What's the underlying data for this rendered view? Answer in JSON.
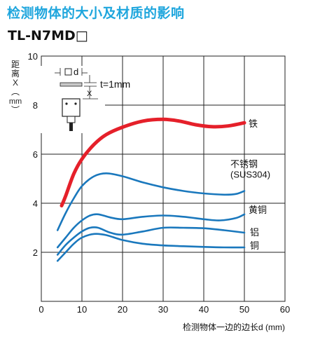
{
  "title": "检测物体的大小及材质的影响",
  "subtitle": "TL-N7MD□",
  "chart_data": {
    "type": "line",
    "ylabel_chars": [
      "距",
      "离",
      "X",
      "︵",
      "mm",
      "︶"
    ],
    "xlabel": "检测物体一边的边长d (mm)",
    "xlim": [
      0,
      60
    ],
    "ylim": [
      0,
      10
    ],
    "x_ticks": [
      "0",
      "10",
      "20",
      "30",
      "40",
      "50",
      "60"
    ],
    "y_ticks": [
      "2",
      "4",
      "6",
      "8",
      "10"
    ],
    "grid": true,
    "inset": {
      "label_d": "d",
      "label_x": "X",
      "label_t": "t=1mm"
    },
    "series": [
      {
        "name": "铁",
        "color": "#e5202a",
        "points": [
          [
            5,
            3.9
          ],
          [
            6,
            4.3
          ],
          [
            8,
            5.2
          ],
          [
            10,
            5.8
          ],
          [
            13,
            6.4
          ],
          [
            16,
            6.8
          ],
          [
            20,
            7.1
          ],
          [
            25,
            7.35
          ],
          [
            30,
            7.42
          ],
          [
            34,
            7.35
          ],
          [
            38,
            7.2
          ],
          [
            42,
            7.12
          ],
          [
            46,
            7.15
          ],
          [
            50,
            7.28
          ]
        ]
      },
      {
        "name": "不锈钢\n(SUS304)",
        "color": "#1a78bd",
        "points": [
          [
            4,
            2.9
          ],
          [
            6,
            3.6
          ],
          [
            8,
            4.2
          ],
          [
            10,
            4.7
          ],
          [
            13,
            5.1
          ],
          [
            16,
            5.22
          ],
          [
            20,
            5.1
          ],
          [
            25,
            4.85
          ],
          [
            30,
            4.65
          ],
          [
            35,
            4.5
          ],
          [
            40,
            4.4
          ],
          [
            45,
            4.35
          ],
          [
            48,
            4.38
          ],
          [
            50,
            4.5
          ]
        ]
      },
      {
        "name": "黄铜",
        "color": "#1a78bd",
        "points": [
          [
            4,
            2.2
          ],
          [
            6,
            2.6
          ],
          [
            8,
            3.0
          ],
          [
            10,
            3.3
          ],
          [
            12,
            3.5
          ],
          [
            14,
            3.55
          ],
          [
            17,
            3.42
          ],
          [
            20,
            3.35
          ],
          [
            25,
            3.45
          ],
          [
            30,
            3.5
          ],
          [
            35,
            3.45
          ],
          [
            40,
            3.35
          ],
          [
            44,
            3.3
          ],
          [
            48,
            3.4
          ],
          [
            50,
            3.55
          ]
        ]
      },
      {
        "name": "铝",
        "color": "#1a78bd",
        "points": [
          [
            4,
            1.9
          ],
          [
            6,
            2.3
          ],
          [
            8,
            2.6
          ],
          [
            10,
            2.85
          ],
          [
            12,
            3.0
          ],
          [
            14,
            3.0
          ],
          [
            17,
            2.8
          ],
          [
            20,
            2.72
          ],
          [
            25,
            2.85
          ],
          [
            30,
            3.0
          ],
          [
            35,
            3.0
          ],
          [
            40,
            2.98
          ],
          [
            45,
            2.9
          ],
          [
            50,
            2.8
          ]
        ]
      },
      {
        "name": "铜",
        "color": "#1a78bd",
        "points": [
          [
            4,
            1.65
          ],
          [
            6,
            2.0
          ],
          [
            8,
            2.35
          ],
          [
            10,
            2.6
          ],
          [
            13,
            2.75
          ],
          [
            16,
            2.7
          ],
          [
            20,
            2.5
          ],
          [
            25,
            2.35
          ],
          [
            30,
            2.28
          ],
          [
            35,
            2.25
          ],
          [
            40,
            2.22
          ],
          [
            45,
            2.2
          ],
          [
            50,
            2.2
          ]
        ]
      }
    ]
  }
}
